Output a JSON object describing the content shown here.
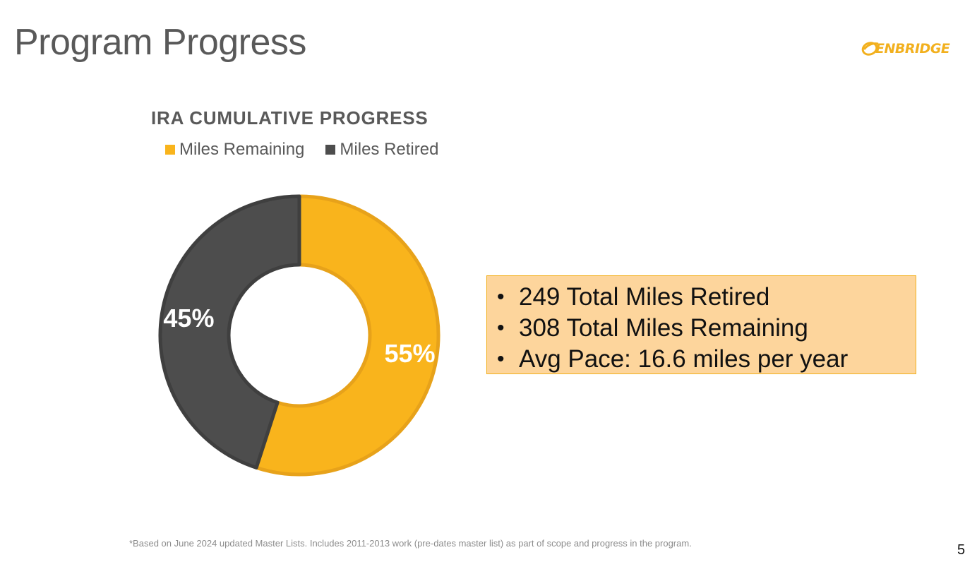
{
  "slide": {
    "title": "Program Progress",
    "page_number": "5",
    "footnote": "*Based on June 2024 updated Master Lists. Includes 2011-2013 work (pre-dates master list) as part of scope and progress in the program."
  },
  "logo": {
    "text": "ENBRIDGE"
  },
  "colors": {
    "remaining": "#f9b41c",
    "remaining_stroke": "#e7a21a",
    "retired": "#4d4d4d",
    "retired_stroke": "#3f3f3f",
    "callout_bg": "#fdd59c",
    "accent": "#f2b01e"
  },
  "chart_data": {
    "type": "pie",
    "subtype": "donut",
    "title": "IRA CUMULATIVE PROGRESS",
    "legend_position": "top",
    "categories": [
      "Miles Remaining",
      "Miles Retired"
    ],
    "values": [
      55,
      45
    ],
    "data_labels": [
      "55%",
      "45%"
    ],
    "unit": "%"
  },
  "callout": {
    "items": [
      "249 Total Miles Retired",
      "308 Total Miles Remaining",
      "Avg Pace: 16.6 miles per year"
    ]
  }
}
